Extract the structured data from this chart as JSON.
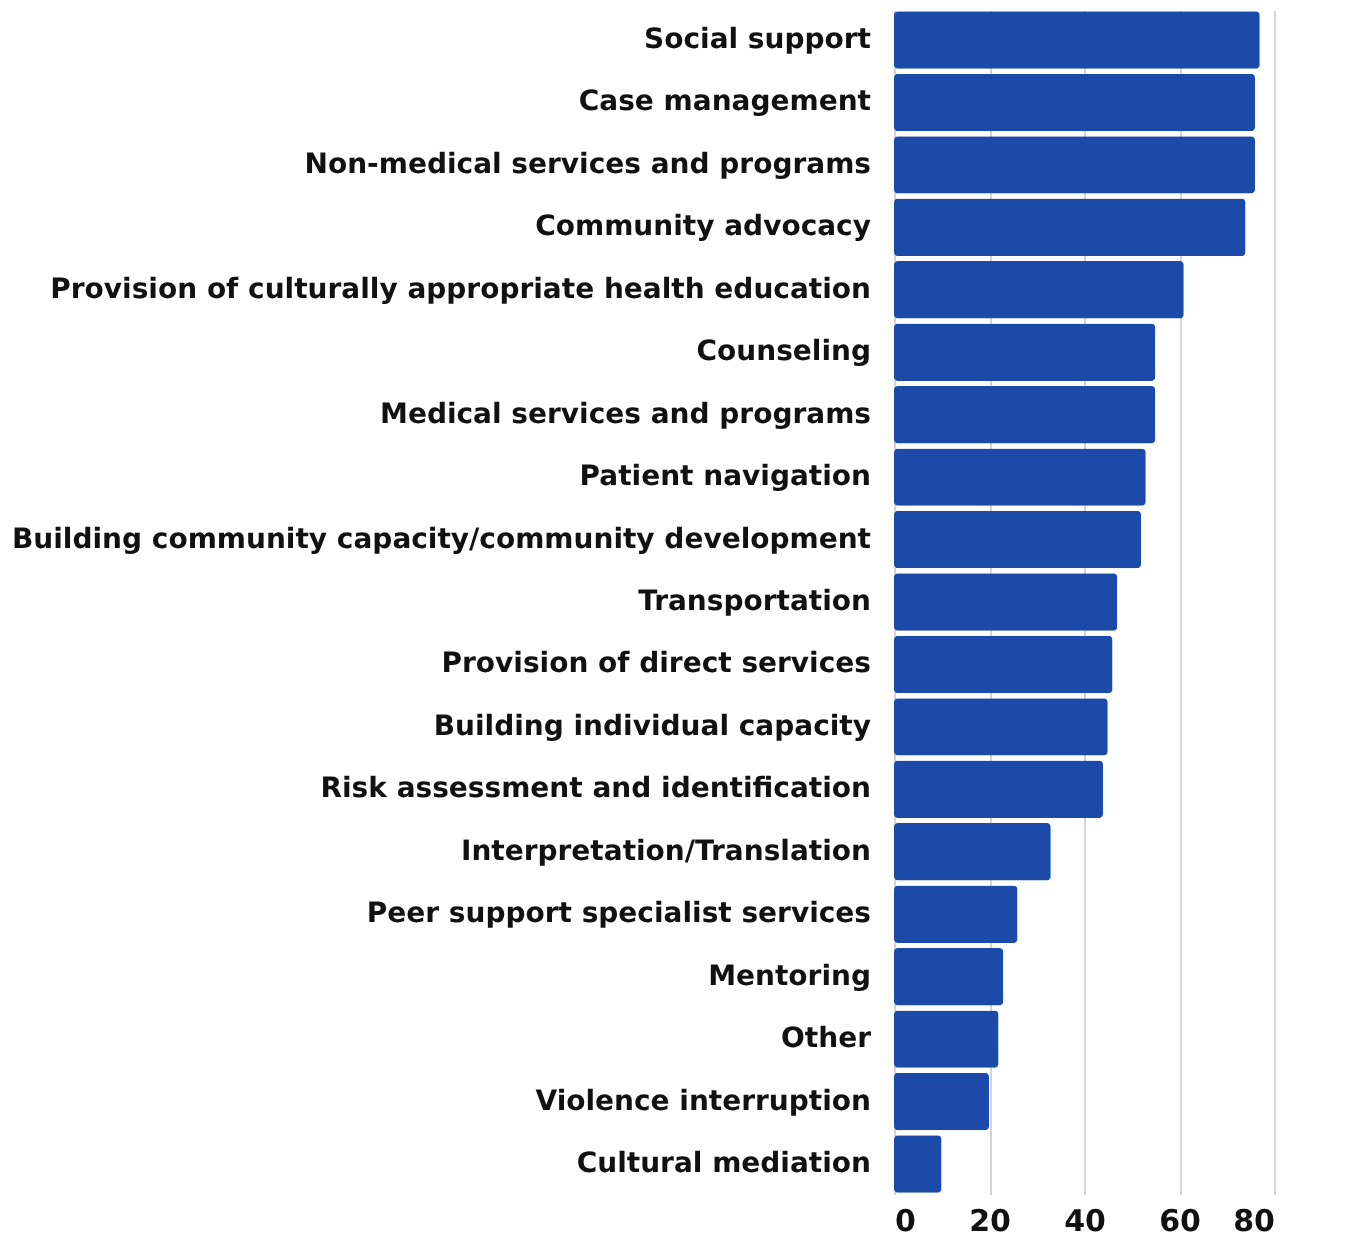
{
  "chart_data": {
    "type": "bar",
    "orientation": "horizontal",
    "categories": [
      "Social support",
      "Case management",
      "Non-medical services and programs",
      "Community advocacy",
      "Provision of culturally appropriate health education",
      "Counseling",
      "Medical services and programs",
      "Patient navigation",
      "Building community capacity/community development",
      "Transportation",
      "Provision of direct services",
      "Building individual capacity",
      "Risk assessment and identification",
      "Interpretation/Translation",
      "Peer support specialist services",
      "Mentoring",
      "Other",
      "Violence interruption",
      "Cultural mediation"
    ],
    "values": [
      77,
      76,
      76,
      74,
      61,
      55,
      55,
      53,
      52,
      47,
      46,
      45,
      44,
      33,
      26,
      23,
      22,
      20,
      10
    ],
    "color": "#1c4aa8",
    "xlim": [
      0,
      80
    ],
    "xticks": [
      0,
      20,
      40,
      60,
      80
    ],
    "grid": "x"
  }
}
